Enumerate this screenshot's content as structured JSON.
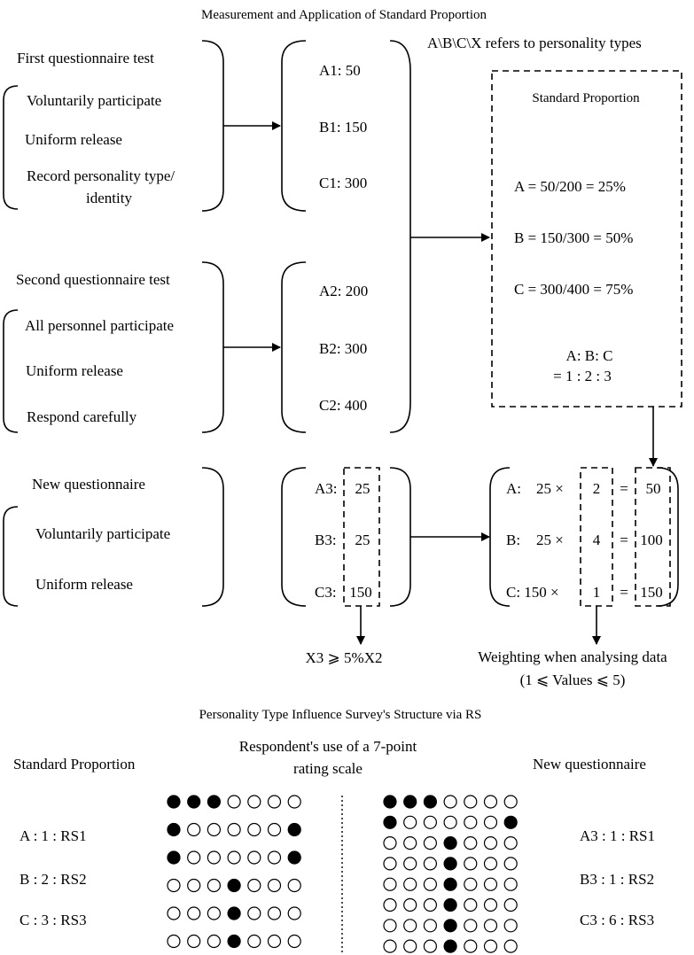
{
  "top": {
    "title": "Measurement and Application of Standard Proportion",
    "note": "A\\B\\C\\X refers to personality types",
    "first": {
      "heading": "First questionnaire test",
      "items": [
        "Voluntarily participate",
        "Uniform release",
        "Record personality type/",
        "identity"
      ],
      "values": [
        "A1: 50",
        "B1: 150",
        "C1: 300"
      ]
    },
    "second": {
      "heading": "Second questionnaire test",
      "items": [
        "All personnel participate",
        "Uniform release",
        "Respond carefully"
      ],
      "values": [
        "A2: 200",
        "B2: 300",
        "C2: 400"
      ]
    },
    "standard": {
      "title": "Standard Proportion",
      "a": "A =    50/200 = 25%",
      "b": "B = 150/300 = 50%",
      "c": "C = 300/400 = 75%",
      "ratio1": "A: B: C",
      "ratio2": "= 1 : 2 : 3"
    },
    "new": {
      "heading": "New questionnaire",
      "items": [
        "Voluntarily participate",
        "Uniform release"
      ],
      "labels": [
        "A3:",
        "B3:",
        "C3:"
      ],
      "values": [
        "25",
        "25",
        "150"
      ],
      "condition": "X3 ⩾ 5%X2"
    },
    "weighting": {
      "rows": [
        {
          "label": "A:",
          "base": "25 ×",
          "weight": "2",
          "eq": "=",
          "result": "50"
        },
        {
          "label": "B:",
          "base": "25 ×",
          "weight": "4",
          "eq": "=",
          "result": "100"
        },
        {
          "label": "C: 150 ×",
          "base": "",
          "weight": "1",
          "eq": "=",
          "result": "150"
        }
      ],
      "caption1": "Weighting when analysing data",
      "caption2": "(1 ⩽ Values ⩽ 5)"
    }
  },
  "bottom": {
    "title": "Personality Type Influence Survey's Structure via RS",
    "left_heading": "Standard Proportion",
    "middle_heading1": "Respondent's use of a 7-point",
    "middle_heading2": "rating scale",
    "right_heading": "New questionnaire",
    "left_ratios": [
      "A : 1 : RS1",
      "B : 2 : RS2",
      "C : 3 : RS3"
    ],
    "right_ratios": [
      "A3 : 1 : RS1",
      "B3 : 1 : RS2",
      "C3 : 6 : RS3"
    ],
    "left_scale_rows": [
      [
        1,
        1,
        1,
        0,
        0,
        0,
        0
      ],
      [
        1,
        0,
        0,
        0,
        0,
        0,
        1
      ],
      [
        1,
        0,
        0,
        0,
        0,
        0,
        1
      ],
      [
        0,
        0,
        0,
        1,
        0,
        0,
        0
      ],
      [
        0,
        0,
        0,
        1,
        0,
        0,
        0
      ],
      [
        0,
        0,
        0,
        1,
        0,
        0,
        0
      ]
    ],
    "right_scale_rows": [
      [
        1,
        1,
        1,
        0,
        0,
        0,
        0
      ],
      [
        1,
        0,
        0,
        0,
        0,
        0,
        1
      ],
      [
        0,
        0,
        0,
        1,
        0,
        0,
        0
      ],
      [
        0,
        0,
        0,
        1,
        0,
        0,
        0
      ],
      [
        0,
        0,
        0,
        1,
        0,
        0,
        0
      ],
      [
        0,
        0,
        0,
        1,
        0,
        0,
        0
      ],
      [
        0,
        0,
        0,
        1,
        0,
        0,
        0
      ],
      [
        0,
        0,
        0,
        1,
        0,
        0,
        0
      ]
    ]
  }
}
